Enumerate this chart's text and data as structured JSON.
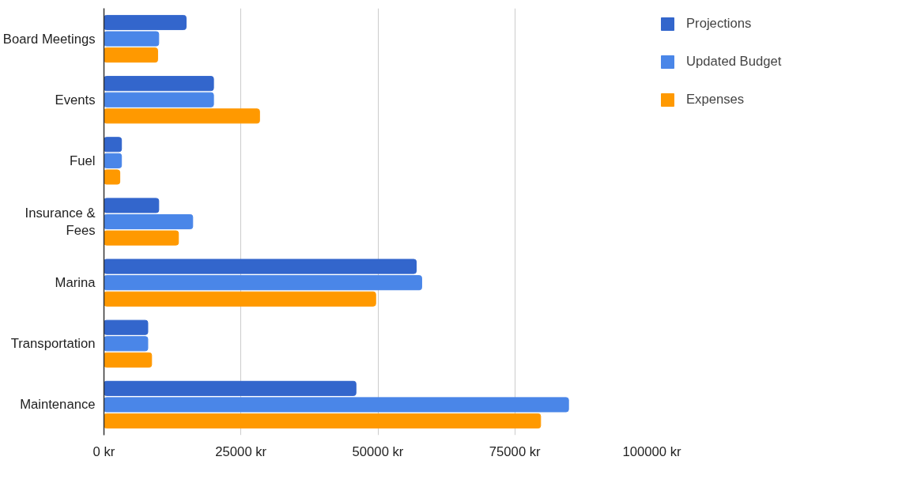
{
  "chart_data": {
    "type": "bar",
    "orientation": "horizontal",
    "categories": [
      "Board Meetings",
      "Events",
      "Fuel",
      "Insurance & Fees",
      "Marina",
      "Transportation",
      "Maintenance"
    ],
    "series": [
      {
        "name": "Projections",
        "color": "#3366cc",
        "values": [
          15000,
          20000,
          3200,
          10000,
          57000,
          8000,
          46000
        ]
      },
      {
        "name": "Updated Budget",
        "color": "#4a86e8",
        "values": [
          10000,
          20000,
          3200,
          16200,
          58000,
          8000,
          84800
        ]
      },
      {
        "name": "Expenses",
        "color": "#ff9900",
        "values": [
          9800,
          28400,
          2900,
          13600,
          49600,
          8700,
          79700
        ]
      }
    ],
    "xlim": [
      0,
      100000
    ],
    "xticks": [
      {
        "value": 0,
        "label": "0 kr"
      },
      {
        "value": 25000,
        "label": "25000 kr"
      },
      {
        "value": 50000,
        "label": "50000 kr"
      },
      {
        "value": 75000,
        "label": "75000 kr"
      },
      {
        "value": 100000,
        "label": "100000 kr"
      }
    ],
    "grid": "x",
    "legend": "top right"
  }
}
